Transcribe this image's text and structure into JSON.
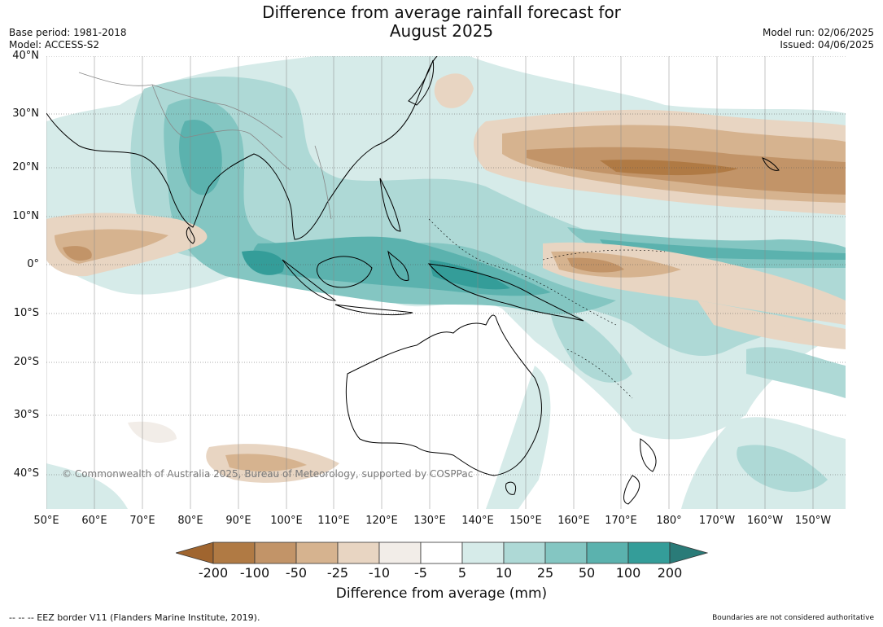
{
  "title_line1": "Difference from average rainfall forecast for",
  "title_line2": "August 2025",
  "base_period": "Base period: 1981-2018",
  "model": "Model: ACCESS-S2",
  "model_run": "Model run: 02/06/2025",
  "issued": "Issued: 04/06/2025",
  "copyright": "© Commonwealth of Australia 2025, Bureau of Meteorology, supported by COSPPac",
  "lat_labels": [
    "40°N",
    "30°N",
    "20°N",
    "10°N",
    "0°",
    "10°S",
    "20°S",
    "30°S",
    "40°S"
  ],
  "lon_labels": [
    "50°E",
    "60°E",
    "70°E",
    "80°E",
    "90°E",
    "100°E",
    "110°E",
    "120°E",
    "130°E",
    "140°E",
    "150°E",
    "160°E",
    "170°E",
    "180°",
    "170°W",
    "160°W",
    "150°W"
  ],
  "colorbar": {
    "ticks": [
      "-200",
      "-100",
      "-50",
      "-25",
      "-10",
      "-5",
      "5",
      "10",
      "25",
      "50",
      "100",
      "200"
    ],
    "colors": [
      "#a0652f",
      "#b07a44",
      "#c29468",
      "#d6b38f",
      "#e8d5c2",
      "#f2ede8",
      "#ffffff",
      "#d6ebe9",
      "#aed9d6",
      "#84c6c2",
      "#5bb2ae",
      "#349d99",
      "#2a7b78"
    ],
    "label": "Difference from average (mm)"
  },
  "eez_note": "--  --  -- EEZ border V11 (Flanders Marine Institute, 2019).",
  "boundary_note": "Boundaries are not considered authoritative"
}
